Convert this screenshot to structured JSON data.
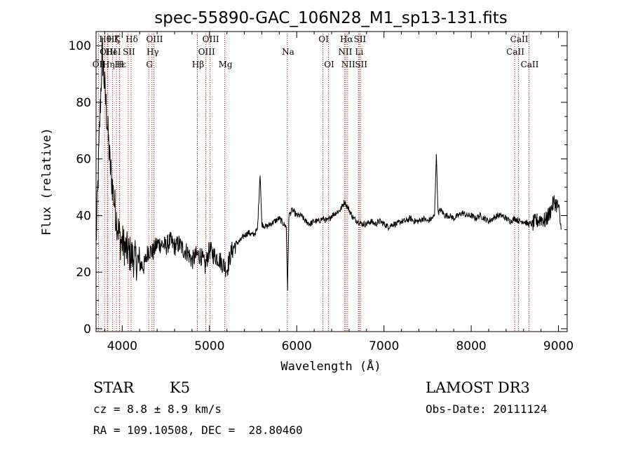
{
  "chart_data": {
    "type": "line",
    "title": "spec-55890-GAC_106N28_M1_sp13-131.fits",
    "xlabel": "Wavelength (Å)",
    "ylabel": "Flux (relative)",
    "xlim": [
      3700,
      9100
    ],
    "ylim": [
      -1,
      105
    ],
    "x_ticks": [
      4000,
      5000,
      6000,
      7000,
      8000,
      9000
    ],
    "x_tick_labels": [
      "4000",
      "5000",
      "6000",
      "7000",
      "8000",
      "9000"
    ],
    "y_ticks": [
      0,
      20,
      40,
      60,
      80,
      100
    ],
    "y_tick_labels": [
      "0",
      "20",
      "40",
      "60",
      "80",
      "100"
    ],
    "series": [
      {
        "name": "spectrum",
        "x": [
          3700,
          3740,
          3770,
          3800,
          3830,
          3860,
          3890,
          3920,
          3950,
          3980,
          4010,
          4040,
          4070,
          4100,
          4130,
          4160,
          4200,
          4250,
          4300,
          4350,
          4400,
          4450,
          4500,
          4550,
          4600,
          4650,
          4700,
          4750,
          4800,
          4850,
          4900,
          4950,
          5000,
          5050,
          5100,
          5150,
          5200,
          5250,
          5300,
          5350,
          5400,
          5450,
          5500,
          5550,
          5580,
          5600,
          5650,
          5700,
          5750,
          5800,
          5850,
          5880,
          5895,
          5910,
          5950,
          6000,
          6050,
          6100,
          6150,
          6200,
          6250,
          6300,
          6350,
          6400,
          6450,
          6500,
          6550,
          6563,
          6600,
          6650,
          6700,
          6750,
          6800,
          6850,
          6900,
          6950,
          7000,
          7050,
          7100,
          7150,
          7200,
          7250,
          7300,
          7350,
          7400,
          7450,
          7500,
          7550,
          7580,
          7600,
          7620,
          7650,
          7700,
          7750,
          7800,
          7850,
          7900,
          7950,
          8000,
          8050,
          8100,
          8150,
          8200,
          8250,
          8300,
          8350,
          8400,
          8450,
          8500,
          8550,
          8600,
          8650,
          8700,
          8750,
          8800,
          8850,
          8900,
          8950,
          9000,
          9030
        ],
        "y": [
          30,
          70,
          98,
          85,
          72,
          58,
          50,
          42,
          36,
          31,
          30,
          28,
          27,
          26,
          25,
          24,
          23,
          22,
          28,
          27,
          30,
          30,
          29,
          31,
          29,
          30,
          28,
          27,
          24,
          26,
          26,
          22,
          28,
          26,
          25,
          23,
          21,
          27,
          30,
          31,
          33,
          34,
          33,
          35,
          55,
          37,
          36,
          37,
          38,
          39,
          37,
          36,
          14,
          40,
          42,
          40,
          40,
          38,
          37,
          38,
          38,
          39,
          38,
          40,
          41,
          42,
          45,
          44,
          42,
          39,
          38,
          37,
          37,
          38,
          37,
          38,
          37,
          36,
          37,
          37,
          38,
          38,
          39,
          38,
          38,
          39,
          38,
          39,
          40,
          62,
          41,
          42,
          40,
          40,
          39,
          40,
          41,
          40,
          40,
          39,
          40,
          39,
          38,
          39,
          40,
          40,
          39,
          38,
          39,
          38,
          38,
          37,
          37,
          38,
          39,
          38,
          41,
          45,
          43,
          35
        ]
      }
    ],
    "lines": [
      {
        "label": "OII",
        "x": 3727,
        "row": 2
      },
      {
        "label": "Hθ",
        "x": 3798,
        "row": 0
      },
      {
        "label": "OIII",
        "x": 3830,
        "row": 1
      },
      {
        "label": "Hη",
        "x": 3835,
        "row": 2
      },
      {
        "label": "Hζ",
        "x": 3889,
        "row": 0
      },
      {
        "label": "K",
        "x": 3934,
        "row": 0
      },
      {
        "label": "HeI",
        "x": 3889,
        "row": 1
      },
      {
        "label": "H",
        "x": 3968,
        "row": 2
      },
      {
        "label": "Hε",
        "x": 3970,
        "row": 2
      },
      {
        "label": "SII",
        "x": 4069,
        "row": 1
      },
      {
        "label": "Hδ",
        "x": 4102,
        "row": 0
      },
      {
        "label": "OIII",
        "x": 4363,
        "row": 0
      },
      {
        "label": "Hγ",
        "x": 4341,
        "row": 1
      },
      {
        "label": "G",
        "x": 4304,
        "row": 2
      },
      {
        "label": "Hβ",
        "x": 4861,
        "row": 2
      },
      {
        "label": "OIII",
        "x": 5007,
        "row": 0
      },
      {
        "label": "OIII",
        "x": 4959,
        "row": 1
      },
      {
        "label": "Mg",
        "x": 5175,
        "row": 2
      },
      {
        "label": "Na",
        "x": 5893,
        "row": 1
      },
      {
        "label": "OI",
        "x": 6300,
        "row": 0
      },
      {
        "label": "OI",
        "x": 6364,
        "row": 2
      },
      {
        "label": "Hα",
        "x": 6563,
        "row": 0
      },
      {
        "label": "SII",
        "x": 6716,
        "row": 0
      },
      {
        "label": "NII",
        "x": 6548,
        "row": 1
      },
      {
        "label": "Li",
        "x": 6708,
        "row": 1
      },
      {
        "label": "NII",
        "x": 6583,
        "row": 2
      },
      {
        "label": "SII",
        "x": 6731,
        "row": 2
      },
      {
        "label": "CaII",
        "x": 8542,
        "row": 0
      },
      {
        "label": "CaII",
        "x": 8498,
        "row": 1
      },
      {
        "label": "CaII",
        "x": 8662,
        "row": 2
      }
    ],
    "line_color": "#cc0000"
  },
  "info": {
    "object_class": "STAR",
    "subclass": "K5",
    "survey": "LAMOST DR3",
    "cz": "cz = 8.8 ± 8.9 km/s",
    "obs_date": "Obs-Date: 20111124",
    "coords": "RA = 109.10508, DEC =  28.80460"
  }
}
